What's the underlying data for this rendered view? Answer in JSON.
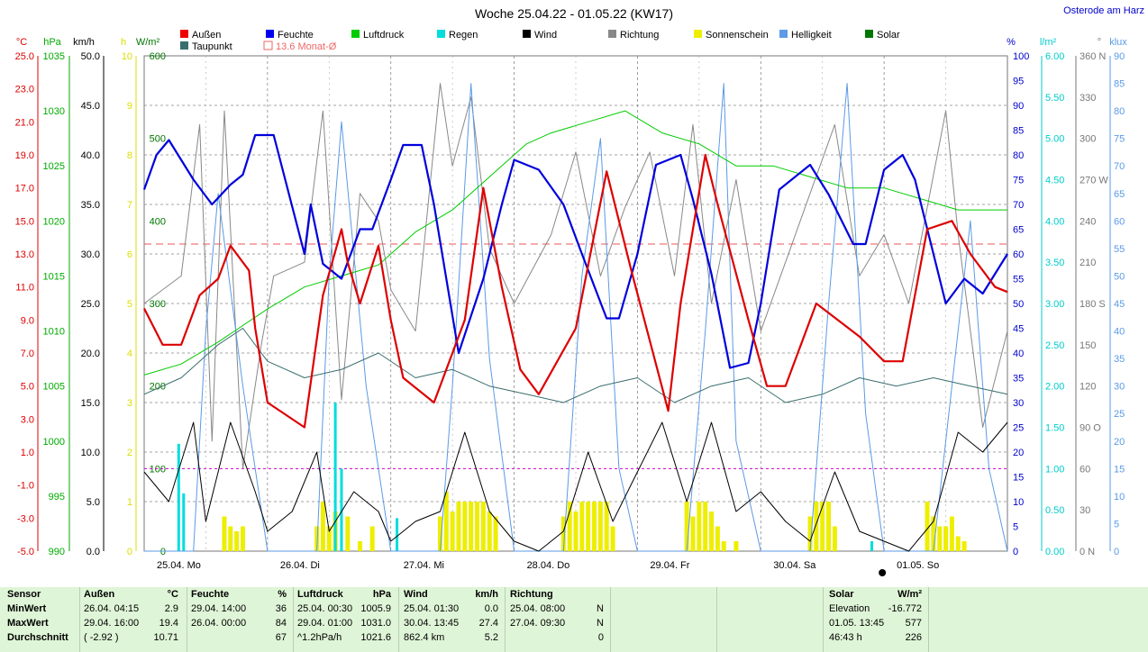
{
  "title": "Woche 25.04.22 - 01.05.22 (KW17)",
  "location": "Osterode am Harz",
  "legend": [
    {
      "label": "Außen",
      "color": "#ee0000"
    },
    {
      "label": "Feuchte",
      "color": "#0000ee"
    },
    {
      "label": "Luftdruck",
      "color": "#00cc00"
    },
    {
      "label": "Regen",
      "color": "#00dddd"
    },
    {
      "label": "Wind",
      "color": "#000000"
    },
    {
      "label": "Richtung",
      "color": "#888888"
    },
    {
      "label": "Sonnenschein",
      "color": "#eeee00"
    },
    {
      "label": "Helligkeit",
      "color": "#5a9ae6"
    },
    {
      "label": "Solar",
      "color": "#007700"
    },
    {
      "label": "Taupunkt",
      "color": "#3a6e6e"
    }
  ],
  "monthly_avg_label": "13.6 Monat-Ø",
  "axis_units": {
    "temp": "°C",
    "pressure": "hPa",
    "wind": "km/h",
    "sun": "h",
    "solar": "W/m²",
    "humidity": "%",
    "rain": "l/m²",
    "direction": "°",
    "lux": "klux"
  },
  "axes": {
    "temp": [
      "25.0",
      "23.0",
      "21.0",
      "19.0",
      "17.0",
      "15.0",
      "13.0",
      "11.0",
      "9.0",
      "7.0",
      "5.0",
      "3.0",
      "1.0",
      "-1.0",
      "-3.0",
      "-5.0"
    ],
    "pressure": [
      "1035",
      "1030",
      "1025",
      "1020",
      "1015",
      "1010",
      "1005",
      "1000",
      "995",
      "990"
    ],
    "wind": [
      "50.0",
      "45.0",
      "40.0",
      "35.0",
      "30.0",
      "25.0",
      "20.0",
      "15.0",
      "10.0",
      "5.0",
      "0.0"
    ],
    "sun": [
      "10",
      "9",
      "8",
      "7",
      "6",
      "5",
      "4",
      "3",
      "2",
      "1",
      "0"
    ],
    "solar": [
      "600",
      "500",
      "400",
      "300",
      "200",
      "100",
      "0"
    ],
    "humidity": [
      "100",
      "95",
      "90",
      "85",
      "80",
      "75",
      "70",
      "65",
      "60",
      "55",
      "50",
      "45",
      "40",
      "35",
      "30",
      "25",
      "20",
      "15",
      "10",
      "5",
      "0"
    ],
    "rain": [
      "6.00",
      "5.50",
      "5.00",
      "4.50",
      "4.00",
      "3.50",
      "3.00",
      "2.50",
      "2.00",
      "1.50",
      "1.00",
      "0.50",
      "0.00"
    ],
    "direction": [
      "360 N",
      "330",
      "300",
      "270 W",
      "240",
      "210",
      "180 S",
      "150",
      "120",
      "90 O",
      "60",
      "30",
      "0 N"
    ],
    "lux": [
      "90",
      "85",
      "80",
      "75",
      "70",
      "65",
      "60",
      "55",
      "50",
      "45",
      "40",
      "35",
      "30",
      "25",
      "20",
      "15",
      "10",
      "5",
      "0"
    ]
  },
  "chart_data": {
    "type": "line",
    "title": "Woche 25.04.22 - 01.05.22 (KW17)",
    "x_days": [
      "25.04. Mo",
      "26.04. Di",
      "27.04. Mi",
      "28.04. Do",
      "29.04. Fr",
      "30.04. Sa",
      "01.05. So"
    ],
    "ylim_temp": [
      -5,
      25
    ],
    "ylim_humidity": [
      0,
      100
    ],
    "ylim_pressure": [
      990,
      1035
    ],
    "ylim_wind": [
      0,
      50
    ],
    "ylim_solar": [
      0,
      600
    ],
    "ylim_sun": [
      0,
      10
    ],
    "ylim_rain": [
      0,
      6
    ],
    "ylim_direction": [
      0,
      360
    ],
    "ylim_lux": [
      0,
      90
    ],
    "monthly_avg_temp": 13.6,
    "series": [
      {
        "name": "Außen",
        "unit": "°C",
        "color": "#dd0000",
        "x": [
          0,
          0.15,
          0.3,
          0.45,
          0.6,
          0.7,
          0.75,
          0.85,
          0.9,
          1.0,
          1.3,
          1.45,
          1.6,
          1.65,
          1.75,
          1.9,
          2.0,
          2.1,
          2.35,
          2.6,
          2.75,
          2.9,
          3.05,
          3.2,
          3.5,
          3.75,
          3.95,
          4.25,
          4.35,
          4.55,
          4.65,
          4.9,
          5.05,
          5.2,
          5.45,
          5.8,
          6.0,
          6.15,
          6.35,
          6.55,
          6.7,
          6.9,
          7.0
        ],
        "values": [
          9.7,
          7.5,
          7.5,
          10.5,
          11.5,
          13.5,
          13.0,
          12.0,
          8.5,
          4.0,
          2.5,
          10.5,
          14.5,
          12.5,
          10.0,
          13.5,
          9.0,
          5.5,
          4.0,
          9.0,
          17.0,
          11.0,
          6.0,
          4.5,
          8.5,
          18.0,
          12.0,
          3.5,
          10.0,
          19.0,
          16.0,
          9.0,
          5.0,
          5.0,
          10.0,
          8.0,
          6.5,
          6.5,
          14.5,
          15.0,
          13.0,
          11.0,
          10.7
        ]
      },
      {
        "name": "Feuchte",
        "unit": "%",
        "color": "#0000dd",
        "x": [
          0,
          0.1,
          0.2,
          0.4,
          0.55,
          0.7,
          0.8,
          0.9,
          1.05,
          1.3,
          1.35,
          1.45,
          1.6,
          1.75,
          1.85,
          2.0,
          2.1,
          2.25,
          2.35,
          2.55,
          2.75,
          2.9,
          3.0,
          3.2,
          3.4,
          3.55,
          3.75,
          3.85,
          4.0,
          4.15,
          4.35,
          4.45,
          4.6,
          4.75,
          4.9,
          5.0,
          5.15,
          5.4,
          5.55,
          5.75,
          5.85,
          6.0,
          6.15,
          6.25,
          6.4,
          6.5,
          6.65,
          6.8,
          6.9,
          7.0
        ],
        "values": [
          73,
          80,
          83,
          75,
          70,
          74,
          76,
          84,
          84,
          60,
          70,
          58,
          55,
          65,
          65,
          75,
          82,
          82,
          70,
          40,
          55,
          70,
          79,
          77,
          70,
          60,
          47,
          47,
          60,
          78,
          80,
          71,
          56,
          37,
          38,
          50,
          73,
          78,
          72,
          62,
          62,
          77,
          80,
          75,
          60,
          50,
          55,
          52,
          56,
          60
        ]
      },
      {
        "name": "Luftdruck",
        "unit": "hPa",
        "color": "#00cc00",
        "x": [
          0,
          0.3,
          0.6,
          1.0,
          1.3,
          1.6,
          1.9,
          2.2,
          2.5,
          2.8,
          3.1,
          3.3,
          3.6,
          3.9,
          4.2,
          4.5,
          4.8,
          5.1,
          5.4,
          5.7,
          6.0,
          6.3,
          6.6,
          6.9,
          7.0
        ],
        "values": [
          1006,
          1007,
          1009,
          1012,
          1014,
          1015,
          1016,
          1019,
          1021,
          1024,
          1027,
          1028,
          1029,
          1030,
          1028,
          1027,
          1025,
          1025,
          1024,
          1023,
          1023,
          1022,
          1021,
          1021,
          1021
        ]
      },
      {
        "name": "Taupunkt",
        "unit": "°C",
        "color": "#3a6e6e",
        "x": [
          0,
          0.3,
          0.6,
          0.8,
          1.0,
          1.3,
          1.6,
          1.9,
          2.2,
          2.5,
          2.8,
          3.1,
          3.4,
          3.7,
          4.0,
          4.3,
          4.6,
          4.9,
          5.2,
          5.5,
          5.8,
          6.1,
          6.4,
          6.7,
          7.0
        ],
        "values": [
          4.5,
          5.5,
          7.5,
          8.5,
          6.5,
          5.5,
          6.0,
          7.0,
          5.5,
          6.0,
          5.0,
          4.5,
          4.0,
          5.0,
          5.5,
          4.0,
          5.0,
          5.5,
          4.0,
          4.5,
          5.5,
          5.0,
          5.5,
          5.0,
          4.5
        ]
      },
      {
        "name": "Wind",
        "unit": "km/h",
        "color": "#000000",
        "x": [
          0,
          0.2,
          0.4,
          0.5,
          0.7,
          0.9,
          1.0,
          1.2,
          1.4,
          1.5,
          1.7,
          1.9,
          2.0,
          2.2,
          2.4,
          2.6,
          2.8,
          3.0,
          3.2,
          3.4,
          3.6,
          3.8,
          4.0,
          4.2,
          4.4,
          4.6,
          4.8,
          5.0,
          5.2,
          5.4,
          5.6,
          5.8,
          6.0,
          6.2,
          6.4,
          6.6,
          6.8,
          7.0
        ],
        "values": [
          8,
          5,
          13,
          3,
          13,
          6,
          2,
          4,
          10,
          2,
          6,
          4,
          1,
          3,
          4,
          12,
          4,
          1,
          0,
          2,
          10,
          3,
          8,
          13,
          5,
          13,
          4,
          6,
          3,
          1,
          8,
          2,
          1,
          0,
          3,
          12,
          10,
          13
        ]
      },
      {
        "name": "Helligkeit",
        "unit": "klux",
        "color": "#5a9ae6",
        "x": [
          0,
          0.4,
          0.5,
          0.6,
          0.8,
          1.0,
          1.4,
          1.5,
          1.6,
          1.8,
          2.0,
          2.4,
          2.5,
          2.65,
          2.8,
          3.0,
          3.4,
          3.55,
          3.7,
          3.85,
          4.0,
          4.4,
          4.55,
          4.7,
          4.8,
          5.0,
          5.4,
          5.55,
          5.7,
          5.85,
          6.0,
          6.4,
          6.55,
          6.7,
          6.85,
          7.0
        ],
        "values": [
          0,
          0,
          40,
          65,
          30,
          0,
          0,
          50,
          78,
          30,
          0,
          0,
          30,
          85,
          35,
          0,
          0,
          50,
          75,
          15,
          0,
          0,
          40,
          85,
          20,
          0,
          0,
          45,
          85,
          25,
          0,
          0,
          30,
          60,
          15,
          0
        ]
      },
      {
        "name": "Richtung",
        "unit": "°",
        "color": "#888888",
        "x": [
          0,
          0.3,
          0.45,
          0.55,
          0.65,
          0.8,
          0.95,
          1.05,
          1.3,
          1.45,
          1.6,
          1.75,
          1.9,
          2.0,
          2.2,
          2.4,
          2.5,
          2.65,
          2.8,
          3.0,
          3.3,
          3.5,
          3.7,
          3.9,
          4.1,
          4.3,
          4.45,
          4.6,
          4.8,
          5.0,
          5.2,
          5.4,
          5.6,
          5.8,
          6.0,
          6.2,
          6.5,
          6.6,
          6.8,
          7.0
        ],
        "values": [
          180,
          200,
          310,
          80,
          320,
          60,
          150,
          200,
          210,
          320,
          110,
          260,
          240,
          190,
          160,
          340,
          280,
          330,
          220,
          180,
          230,
          290,
          200,
          250,
          290,
          200,
          310,
          180,
          270,
          160,
          210,
          260,
          310,
          200,
          230,
          180,
          320,
          230,
          90,
          160
        ]
      }
    ],
    "bars": [
      {
        "name": "Sonnenschein",
        "unit": "h",
        "color": "#eeee00",
        "x": [
          0.65,
          0.7,
          0.75,
          0.8,
          1.4,
          1.45,
          1.5,
          1.55,
          1.65,
          1.75,
          1.85,
          2.4,
          2.45,
          2.5,
          2.55,
          2.6,
          2.65,
          2.7,
          2.75,
          2.8,
          2.85,
          3.4,
          3.45,
          3.5,
          3.55,
          3.6,
          3.65,
          3.7,
          3.75,
          3.8,
          4.4,
          4.45,
          4.5,
          4.55,
          4.6,
          4.65,
          4.7,
          4.8,
          5.4,
          5.45,
          5.5,
          5.55,
          5.6,
          6.35,
          6.4,
          6.45,
          6.5,
          6.55,
          6.6,
          6.65
        ],
        "values": [
          0.7,
          0.5,
          0.4,
          0.5,
          0.5,
          1.0,
          0.5,
          0.8,
          0.7,
          0.2,
          0.5,
          0.7,
          1.2,
          0.8,
          1.0,
          1.0,
          1.0,
          1.0,
          1.0,
          0.8,
          0.7,
          0.7,
          1.0,
          0.8,
          1.0,
          1.0,
          1.0,
          1.0,
          1.0,
          0.5,
          1.0,
          0.7,
          1.0,
          1.0,
          0.8,
          0.5,
          0.2,
          0.2,
          0.7,
          1.0,
          1.0,
          1.0,
          0.5,
          1.0,
          0.7,
          0.5,
          0.5,
          0.7,
          0.3,
          0.2
        ]
      },
      {
        "name": "Regen",
        "unit": "l/m²",
        "color": "#00dddd",
        "x": [
          0.28,
          0.32,
          1.55,
          1.6,
          2.05,
          5.9
        ],
        "values": [
          1.3,
          0.7,
          1.8,
          1.0,
          0.4,
          0.12
        ]
      }
    ]
  },
  "stats": {
    "sensor_header": "Sensor",
    "row_labels": [
      "MinWert",
      "MaxWert",
      "Durchschnitt"
    ],
    "aussen": {
      "header": "Außen",
      "unit": "°C",
      "rows": [
        [
          "26.04.  04:15",
          "2.9"
        ],
        [
          "29.04.  16:00",
          "19.4"
        ],
        [
          "( -2.92 )",
          "10.71"
        ]
      ]
    },
    "feuchte": {
      "header": "Feuchte",
      "unit": "%",
      "rows": [
        [
          "29.04.  14:00",
          "36"
        ],
        [
          "26.04.  00:00",
          "84"
        ],
        [
          "",
          "67"
        ]
      ]
    },
    "luftdruck": {
      "header": "Luftdruck",
      "unit": "hPa",
      "rows": [
        [
          "25.04.  00:30",
          "1005.9"
        ],
        [
          "29.04.  01:00",
          "1031.0"
        ],
        [
          "^1.2hPa/h",
          "1021.6"
        ]
      ]
    },
    "wind": {
      "header": "Wind",
      "unit": "km/h",
      "rows": [
        [
          "25.04.  01:30",
          "0.0"
        ],
        [
          "30.04.  13:45",
          "27.4"
        ],
        [
          "862.4 km",
          "5.2"
        ]
      ]
    },
    "richtung": {
      "header": "Richtung",
      "rows": [
        [
          "25.04.  08:00",
          "N"
        ],
        [
          "27.04.  09:30",
          "N"
        ],
        [
          "",
          "0"
        ]
      ]
    },
    "solar": {
      "header": "Solar",
      "unit": "W/m²",
      "rows": [
        [
          "Elevation",
          "-16.772"
        ],
        [
          "01.05.  13:45",
          "577"
        ],
        [
          "46:43 h",
          "226"
        ]
      ]
    }
  }
}
